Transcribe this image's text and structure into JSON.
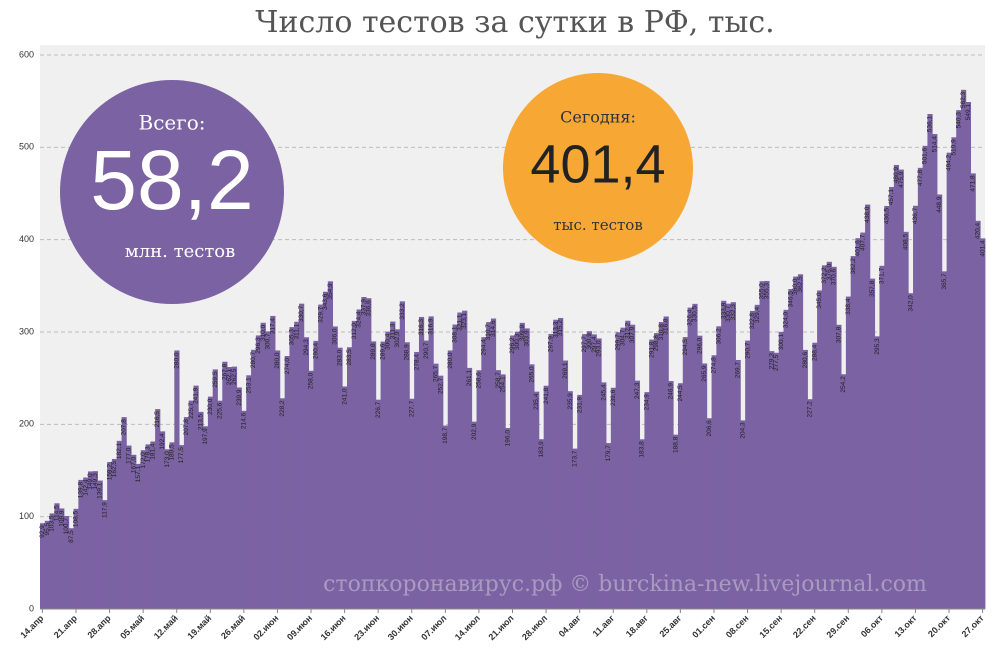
{
  "chart_data": {
    "type": "bar",
    "title": "Число тестов за сутки в РФ, тыс.",
    "annotations": {
      "total_caption": "Всего:",
      "total_value": "58,2",
      "total_unit": "млн. тестов",
      "today_caption": "Сегодня:",
      "today_value": "401,4",
      "today_unit": "тыс. тестов",
      "watermark": "стопкоронавирус.рф © burckina-new.livejournal.com"
    },
    "color": "#7b62a3",
    "ylim": [
      0,
      600
    ],
    "yticks": [
      0,
      100,
      200,
      300,
      400,
      500,
      600
    ],
    "grid": true,
    "categories": [
      "14.апр",
      null,
      null,
      null,
      null,
      null,
      null,
      "21.апр",
      null,
      null,
      null,
      null,
      null,
      null,
      "28.апр",
      null,
      null,
      null,
      null,
      null,
      null,
      "05.май",
      null,
      null,
      null,
      null,
      null,
      null,
      "12.май",
      null,
      null,
      null,
      null,
      null,
      null,
      "19.май",
      null,
      null,
      null,
      null,
      null,
      null,
      "26.май",
      null,
      null,
      null,
      null,
      null,
      null,
      "02.июн",
      null,
      null,
      null,
      null,
      null,
      null,
      "09.июн",
      null,
      null,
      null,
      null,
      null,
      null,
      "16.июн",
      null,
      null,
      null,
      null,
      null,
      null,
      "23.июн",
      null,
      null,
      null,
      null,
      null,
      null,
      "30.июн",
      null,
      null,
      null,
      null,
      null,
      null,
      "07.июл",
      null,
      null,
      null,
      null,
      null,
      null,
      "14.июл",
      null,
      null,
      null,
      null,
      null,
      null,
      "21.июл",
      null,
      null,
      null,
      null,
      null,
      null,
      "28.июл",
      null,
      null,
      null,
      null,
      null,
      null,
      "04.авг",
      null,
      null,
      null,
      null,
      null,
      null,
      "11.авг",
      null,
      null,
      null,
      null,
      null,
      null,
      "18.авг",
      null,
      null,
      null,
      null,
      null,
      null,
      "25.авг",
      null,
      null,
      null,
      null,
      null,
      null,
      "01.сен",
      null,
      null,
      null,
      null,
      null,
      null,
      "08.сен",
      null,
      null,
      null,
      null,
      null,
      null,
      "15.сен",
      null,
      null,
      null,
      null,
      null,
      null,
      "22.сен",
      null,
      null,
      null,
      null,
      null,
      null,
      "29.сен",
      null,
      null,
      null,
      null,
      null,
      null,
      "06.окт",
      null,
      null,
      null,
      null,
      null,
      null,
      "13.окт",
      null,
      null,
      null,
      null,
      null,
      null,
      "20.окт",
      null,
      null,
      null,
      null,
      null,
      null,
      "27.окт"
    ],
    "values": [
      92.9,
      95.5,
      103.5,
      114.5,
      108.9,
      100.7,
      87.5,
      108.5,
      139.8,
      142.4,
      149.0,
      149.3,
      139.1,
      117.9,
      159.2,
      162.5,
      182.1,
      207.8,
      177.0,
      167.0,
      157.1,
      172.0,
      178.3,
      181.4,
      216.5,
      192.4,
      173.0,
      180.5,
      280.0,
      177.5,
      207.8,
      225.7,
      241.9,
      213.5,
      197.9,
      230.0,
      259.5,
      225.6,
      267.8,
      262.1,
      262.5,
      239.9,
      214.6,
      253.1,
      280.7,
      296.3,
      310.0,
      300.7,
      317.4,
      280.0,
      228.2,
      274.0,
      305.3,
      311.1,
      330.7,
      294.3,
      258.0,
      290.4,
      329.7,
      343.6,
      354.9,
      306.0,
      283.0,
      241.0,
      283.5,
      312.0,
      324.4,
      337.9,
      336.6,
      289.8,
      226.7,
      289.6,
      300.4,
      311.3,
      302.9,
      333.2,
      288.9,
      227.7,
      278.4,
      316.3,
      290.7,
      316.9,
      265.7,
      252.7,
      198.7,
      280.0,
      308.1,
      321.1,
      323.1,
      261.1,
      202.9,
      258.6,
      294.4,
      310.7,
      314.6,
      258.7,
      254.1,
      196.0,
      296.2,
      300.3,
      309.9,
      303.9,
      265.0,
      235.4,
      183.9,
      241.8,
      297.9,
      313.3,
      315.2,
      269.1,
      235.9,
      173.7,
      231.9,
      297.7,
      300.9,
      297.4,
      293.0,
      245.4,
      179.7,
      239.6,
      299.7,
      304.7,
      312.2,
      307.9,
      247.3,
      183.8,
      234.9,
      291.8,
      298.8,
      310.8,
      316.8,
      246.9,
      188.8,
      244.5,
      294.5,
      326.4,
      330.5,
      296.0,
      265.9,
      206.6,
      274.8,
      306.2,
      333.8,
      330.7,
      332.3,
      269.7,
      204.3,
      290.7,
      322.8,
      329.4,
      355.0,
      355.3,
      279.3,
      277.5,
      300.1,
      324.0,
      346.5,
      360.0,
      362.5,
      280.6,
      227.2,
      288.4,
      345.0,
      372.2,
      376.0,
      370.6,
      307.8,
      254.2,
      338.4,
      382.2,
      401.6,
      407.7,
      438.0,
      357.8,
      295.3,
      371.7,
      436.5,
      457.1,
      480.9,
      475.9,
      408.5,
      342.0,
      436.7,
      477.8,
      501.6,
      536.1,
      514.4,
      448.9,
      365.7,
      494.2,
      510.9,
      540.3,
      562.3,
      549.1,
      471.8,
      420.4,
      401.4
    ],
    "value_labels": [
      "92,9",
      "95,5",
      "103,5",
      "114,5",
      "108,9",
      "100,7",
      "87,5",
      "108,5",
      "139,8",
      "142,4",
      "149,0",
      "149,3",
      "139,1",
      "117,9",
      "159,2",
      "162,5",
      "182,1",
      "207,8",
      "177,0",
      "167,0",
      "157,1",
      "172,0",
      "178,3",
      "181,4",
      "216,5",
      "192,4",
      "173,0",
      "180,5",
      "280,0",
      "177,5",
      "207,8",
      "225,7",
      "241,9",
      "213,5",
      "197,9",
      "230,0",
      "259,5",
      "225,6",
      "267,8",
      "262,1",
      "262,5",
      "239,9",
      "214,6",
      "253,1",
      "280,7",
      "296,3",
      "310,0",
      "300,7",
      "317,4",
      "280,0",
      "228,2",
      "274,0",
      "305,3",
      "311,1",
      "330,7",
      "294,3",
      "258,0",
      "290,4",
      "329,7",
      "343,6",
      "354,9",
      "306,0",
      "283,0",
      "241,0",
      "283,5",
      "312,0",
      "324,4",
      "337,9",
      "336,6",
      "289,8",
      "226,7",
      "289,6",
      "300,4",
      "311,3",
      "302,9",
      "333,2",
      "288,9",
      "227,7",
      "278,4",
      "316,3",
      "290,7",
      "316,9",
      "265,7",
      "252,7",
      "198,7",
      "280,0",
      "308,1",
      "321,1",
      "323,1",
      "261,1",
      "202,9",
      "258,6",
      "294,4",
      "310,7",
      "314,6",
      "258,7",
      "254,1",
      "196,0",
      "296,2",
      "300,3",
      "309,9",
      "303,9",
      "265,0",
      "235,4",
      "183,9",
      "241,8",
      "297,9",
      "313,3",
      "315,2",
      "269,1",
      "235,9",
      "173,7",
      "231,9",
      "297,7",
      "300,9",
      "297,4",
      "293,0",
      "245,4",
      "179,7",
      "239,6",
      "299,7",
      "304,7",
      "312,2",
      "307,9",
      "247,3",
      "183,8",
      "234,9",
      "291,8",
      "298,8",
      "310,8",
      "316,8",
      "246,9",
      "188,8",
      "244,5",
      "294,5",
      "326,4",
      "330,5",
      "296,0",
      "265,9",
      "206,6",
      "274,8",
      "306,2",
      "333,8",
      "330,7",
      "332,3",
      "269,7",
      "204,3",
      "290,7",
      "322,8",
      "329,4",
      "355,0",
      "355,3",
      "279,3",
      "277,5",
      "300,1",
      "324,0",
      "346,5",
      "360,0",
      "362,5",
      "280,6",
      "227,2",
      "288,4",
      "345,0",
      "372,2",
      "376,0",
      "370,6",
      "307,8",
      "254,2",
      "338,4",
      "382,2",
      "401,6",
      "407,7",
      "438,0",
      "357,8",
      "295,3",
      "371,7",
      "436,5",
      "457,1",
      "480,9",
      "475,9",
      "408,5",
      "342,0",
      "436,7",
      "477,8",
      "501,6",
      "536,1",
      "514,4",
      "448,9",
      "365,7",
      "494,2",
      "510,9",
      "540,3",
      "562,3",
      "549,1",
      "471,8",
      "420,4",
      "401,4"
    ]
  }
}
